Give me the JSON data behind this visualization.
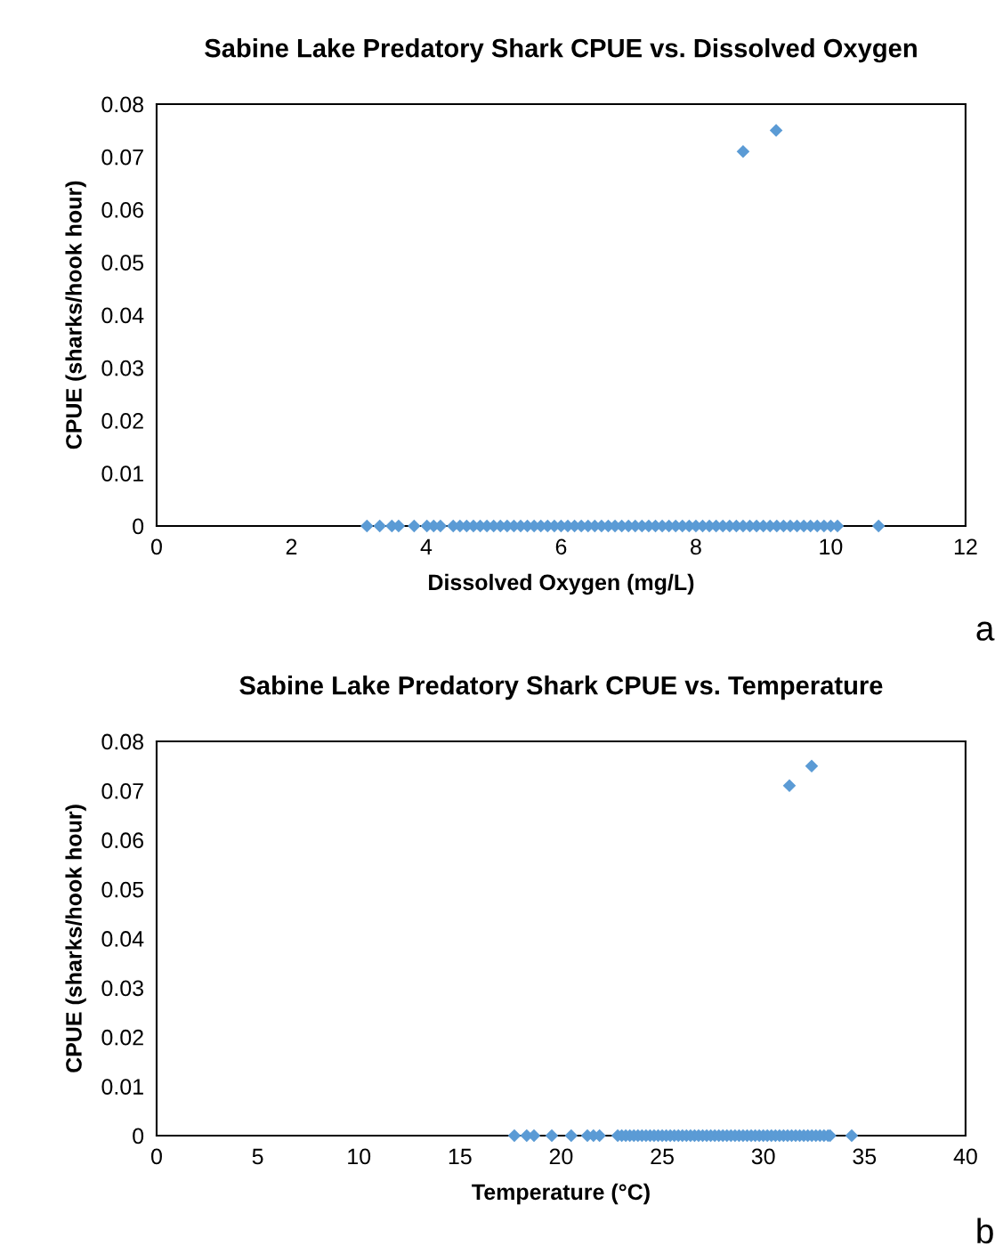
{
  "chart_data": [
    {
      "type": "scatter",
      "title": "Sabine Lake Predatory Shark CPUE vs. Dissolved Oxygen",
      "xlabel": "Dissolved Oxygen (mg/L)",
      "ylabel": "CPUE (sharks/hook hour)",
      "marker": "diamond",
      "grid": false,
      "legend": false,
      "xlim": [
        0,
        12
      ],
      "xticks": [
        0,
        2,
        4,
        6,
        8,
        10,
        12
      ],
      "ylim": [
        0,
        0.08
      ],
      "yticks": [
        {
          "value": 0,
          "label": "0"
        },
        0.01,
        0.02,
        0.03,
        0.04,
        0.05,
        0.06,
        0.07,
        0.08
      ],
      "annotations": [
        "a"
      ],
      "series": [
        {
          "color": "#5b9bd5",
          "x": [
            3.12,
            3.31,
            3.49,
            3.59,
            3.82,
            4.01,
            4.11,
            4.21,
            4.4,
            4.5,
            4.6,
            4.7,
            4.8,
            4.9,
            5.0,
            5.1,
            5.2,
            5.3,
            5.4,
            5.5,
            5.6,
            5.7,
            5.8,
            5.9,
            6.0,
            6.1,
            6.2,
            6.3,
            6.4,
            6.5,
            6.6,
            6.7,
            6.8,
            6.9,
            7.0,
            7.1,
            7.2,
            7.3,
            7.4,
            7.5,
            7.6,
            7.7,
            7.8,
            7.9,
            8.0,
            8.1,
            8.2,
            8.3,
            8.4,
            8.5,
            8.6,
            8.7,
            8.8,
            8.9,
            9.0,
            9.1,
            9.2,
            9.3,
            9.4,
            9.5,
            9.6,
            9.7,
            9.8,
            9.9,
            10.0,
            10.1,
            10.71,
            8.7,
            9.19
          ],
          "values": [
            0,
            0,
            0,
            0,
            0,
            0,
            0,
            0,
            0,
            0,
            0,
            0,
            0,
            0,
            0,
            0,
            0,
            0,
            0,
            0,
            0,
            0,
            0,
            0,
            0,
            0,
            0,
            0,
            0,
            0,
            0,
            0,
            0,
            0,
            0,
            0,
            0,
            0,
            0,
            0,
            0,
            0,
            0,
            0,
            0,
            0,
            0,
            0,
            0,
            0,
            0,
            0,
            0,
            0,
            0,
            0,
            0,
            0,
            0,
            0,
            0,
            0,
            0,
            0,
            0,
            0,
            0,
            0.071,
            0.075
          ]
        }
      ]
    },
    {
      "type": "scatter",
      "title": "Sabine Lake Predatory Shark CPUE vs. Temperature",
      "xlabel": "Temperature (°C)",
      "ylabel": "CPUE (sharks/hook hour)",
      "marker": "diamond",
      "grid": false,
      "legend": false,
      "xlim": [
        0,
        40
      ],
      "xticks": [
        0,
        5,
        10,
        15,
        20,
        25,
        30,
        35,
        40
      ],
      "ylim": [
        0,
        0.08
      ],
      "yticks": [
        {
          "value": 0,
          "label": "0"
        },
        0.01,
        0.02,
        0.03,
        0.04,
        0.05,
        0.06,
        0.07,
        0.08
      ],
      "annotations": [
        "b"
      ],
      "series": [
        {
          "color": "#5b9bd5",
          "x": [
            17.69,
            18.3,
            18.66,
            19.54,
            20.5,
            21.3,
            21.6,
            21.9,
            22.8,
            23.0,
            23.2,
            23.4,
            23.6,
            23.8,
            24.0,
            24.2,
            24.4,
            24.6,
            24.8,
            25.0,
            25.2,
            25.4,
            25.6,
            25.8,
            26.0,
            26.2,
            26.4,
            26.6,
            26.8,
            27.0,
            27.2,
            27.4,
            27.6,
            27.8,
            28.0,
            28.2,
            28.4,
            28.6,
            28.8,
            29.0,
            29.2,
            29.4,
            29.6,
            29.8,
            30.0,
            30.2,
            30.4,
            30.6,
            30.8,
            31.0,
            31.2,
            31.4,
            31.6,
            31.8,
            32.0,
            32.2,
            32.4,
            32.6,
            32.8,
            33.0,
            33.2,
            33.3,
            34.37,
            31.29,
            32.39
          ],
          "values": [
            0,
            0,
            0,
            0,
            0,
            0,
            0,
            0,
            0,
            0,
            0,
            0,
            0,
            0,
            0,
            0,
            0,
            0,
            0,
            0,
            0,
            0,
            0,
            0,
            0,
            0,
            0,
            0,
            0,
            0,
            0,
            0,
            0,
            0,
            0,
            0,
            0,
            0,
            0,
            0,
            0,
            0,
            0,
            0,
            0,
            0,
            0,
            0,
            0,
            0,
            0,
            0,
            0,
            0,
            0,
            0,
            0,
            0,
            0,
            0,
            0,
            0,
            0,
            0.071,
            0.075
          ]
        }
      ]
    }
  ]
}
